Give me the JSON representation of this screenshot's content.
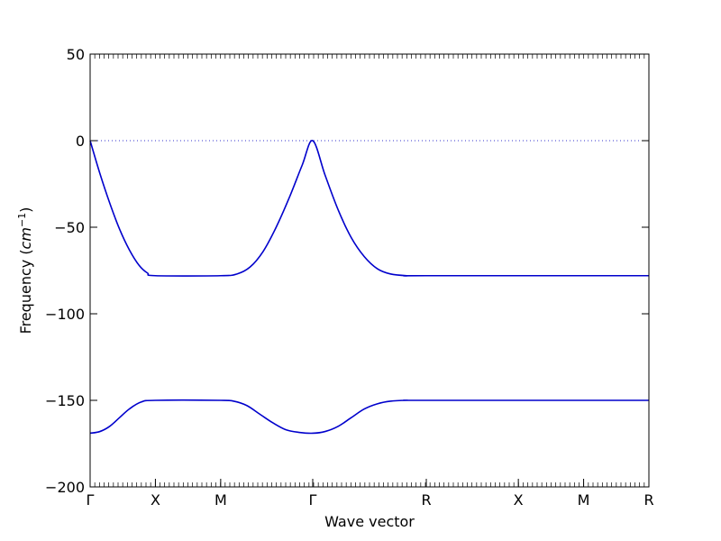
{
  "chart_data": {
    "type": "line",
    "title": "",
    "xlabel": "Wave vector",
    "ylabel_prefix": "Frequency (",
    "ylabel_unit_base": "cm",
    "ylabel_unit_exp": "−1",
    "ylabel_suffix": ")",
    "ylim": [
      -200,
      50
    ],
    "yticks": [
      50,
      0,
      -50,
      -100,
      -150,
      -200
    ],
    "ytick_labels": [
      "50",
      "0",
      "−50",
      "−100",
      "−150",
      "−200"
    ],
    "x_path": [
      0,
      1.0,
      2.0,
      3.41,
      5.15,
      6.56,
      7.56,
      8.56
    ],
    "xtick_labels": [
      "Γ",
      "X",
      "M",
      "Γ",
      "R",
      "X",
      "M",
      "R"
    ],
    "zero_line": true,
    "line_color": "#0000cc",
    "zero_line_color": "#3333cc",
    "series": [
      {
        "points": [
          [
            0.0,
            0
          ],
          [
            0.15,
            -19
          ],
          [
            0.3,
            -36
          ],
          [
            0.45,
            -51
          ],
          [
            0.6,
            -63
          ],
          [
            0.75,
            -72
          ],
          [
            0.88,
            -76.5
          ],
          [
            1.0,
            -78
          ],
          [
            2.0,
            -78
          ],
          [
            2.25,
            -77
          ],
          [
            2.45,
            -73
          ],
          [
            2.65,
            -64
          ],
          [
            2.85,
            -50
          ],
          [
            3.05,
            -33
          ],
          [
            3.25,
            -14
          ],
          [
            3.41,
            0
          ],
          [
            3.6,
            -20
          ],
          [
            3.8,
            -40
          ],
          [
            4.0,
            -56
          ],
          [
            4.2,
            -67
          ],
          [
            4.4,
            -74
          ],
          [
            4.6,
            -77
          ],
          [
            4.85,
            -78
          ],
          [
            5.15,
            -78
          ],
          [
            8.56,
            -78
          ]
        ]
      },
      {
        "points": [
          [
            0.0,
            -169
          ],
          [
            0.15,
            -168
          ],
          [
            0.3,
            -165
          ],
          [
            0.45,
            -160
          ],
          [
            0.6,
            -155
          ],
          [
            0.78,
            -151
          ],
          [
            1.0,
            -150
          ],
          [
            2.0,
            -150
          ],
          [
            2.2,
            -150.5
          ],
          [
            2.4,
            -153
          ],
          [
            2.6,
            -158
          ],
          [
            2.8,
            -163
          ],
          [
            3.0,
            -167
          ],
          [
            3.2,
            -168.5
          ],
          [
            3.41,
            -169
          ],
          [
            3.6,
            -168
          ],
          [
            3.8,
            -165
          ],
          [
            4.0,
            -160
          ],
          [
            4.2,
            -155
          ],
          [
            4.4,
            -152
          ],
          [
            4.6,
            -150.5
          ],
          [
            4.85,
            -150
          ],
          [
            5.15,
            -150
          ],
          [
            8.56,
            -150
          ]
        ]
      }
    ]
  }
}
